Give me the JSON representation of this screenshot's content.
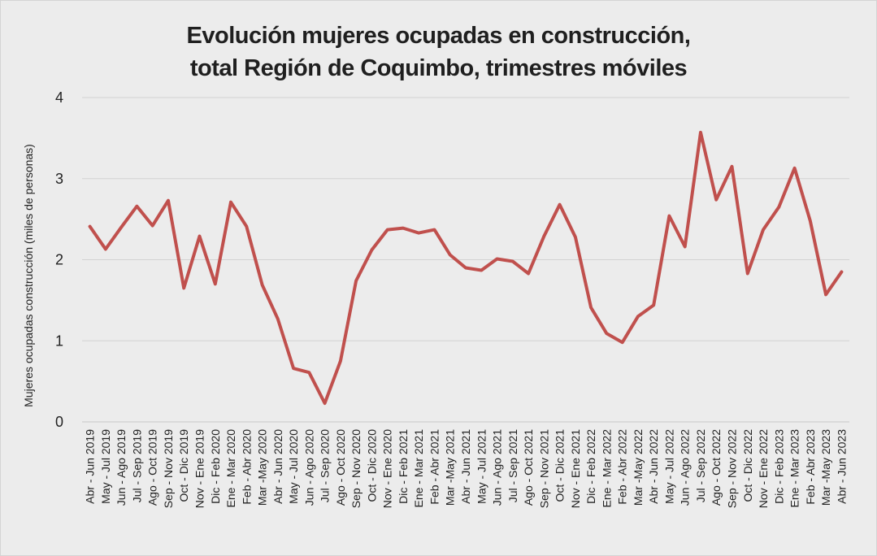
{
  "chart_data": {
    "type": "line",
    "title_lines": [
      "Evolución mujeres ocupadas en construcción,",
      "total Región de Coquimbo, trimestres móviles"
    ],
    "xlabel": "",
    "ylabel": "Mujeres ocupadas construcción (miles de personas)",
    "ylim": [
      0,
      4
    ],
    "yticks": [
      0,
      1,
      2,
      3,
      4
    ],
    "grid": true,
    "line_color": "#c0504d",
    "categories": [
      "Abr - Jun 2019",
      "May - Jul 2019",
      "Jun - Ago 2019",
      "Jul - Sep 2019",
      "Ago - Oct 2019",
      "Sep - Nov 2019",
      "Oct - Dic 2019",
      "Nov - Ene 2019",
      "Dic - Feb 2020",
      "Ene - Mar 2020",
      "Feb - Abr 2020",
      "Mar -May 2020",
      "Abr - Jun 2020",
      "May - Jul 2020",
      "Jun - Ago 2020",
      "Jul - Sep 2020",
      "Ago - Oct 2020",
      "Sep - Nov 2020",
      "Oct - Dic 2020",
      "Nov - Ene 2020",
      "Dic - Feb 2021",
      "Ene - Mar 2021",
      "Feb - Abr 2021",
      "Mar -May 2021",
      "Abr - Jun 2021",
      "May - Jul 2021",
      "Jun - Ago 2021",
      "Jul - Sep 2021",
      "Ago - Oct 2021",
      "Sep - Nov 2021",
      "Oct - Dic 2021",
      "Nov - Ene 2021",
      "Dic - Feb 2022",
      "Ene - Mar 2022",
      "Feb - Abr 2022",
      "Mar -May 2022",
      "Abr - Jun 2022",
      "May - Jul 2022",
      "Jun - Ago 2022",
      "Jul - Sep 2022",
      "Ago - Oct 2022",
      "Sep - Nov 2022",
      "Oct - Dic 2022",
      "Nov - Ene 2022",
      "Dic - Feb 2023",
      "Ene - Mar 2023",
      "Feb - Abr 2023",
      "Mar -May 2023",
      "Abr - Jun 2023"
    ],
    "values": [
      2.41,
      2.13,
      2.4,
      2.66,
      2.42,
      2.73,
      1.65,
      2.29,
      1.7,
      2.71,
      2.41,
      1.69,
      1.27,
      0.66,
      0.61,
      0.23,
      0.75,
      1.74,
      2.12,
      2.37,
      2.39,
      2.33,
      2.37,
      2.06,
      1.9,
      1.87,
      2.01,
      1.98,
      1.83,
      2.29,
      2.68,
      2.28,
      1.41,
      1.09,
      0.98,
      1.3,
      1.44,
      2.54,
      2.16,
      3.57,
      2.74,
      3.15,
      1.83,
      2.37,
      2.65,
      3.13,
      2.48,
      1.57,
      1.85
    ]
  }
}
